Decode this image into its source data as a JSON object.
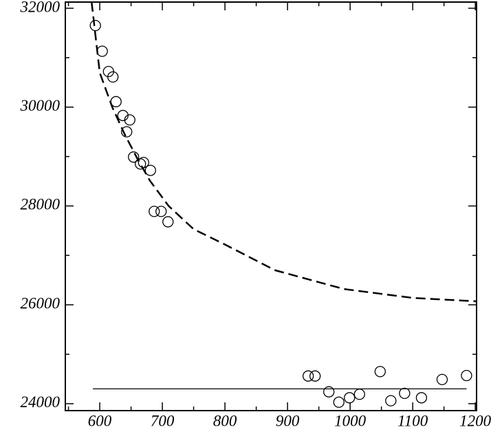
{
  "chart_data": {
    "type": "scatter",
    "xlim": [
      545,
      1202
    ],
    "ylim": [
      23860,
      32125
    ],
    "xticks": [
      600,
      700,
      800,
      900,
      1000,
      1100,
      1200
    ],
    "yticks": [
      24000,
      26000,
      28000,
      30000,
      32000
    ],
    "xminorticks": [
      550,
      650,
      750,
      850,
      950,
      1050,
      1150
    ],
    "yminorticks": [
      25000,
      27000,
      29000,
      31000
    ],
    "series": [
      {
        "type": "scatter",
        "color": "#000000",
        "x": [
          593,
          604,
          614,
          621,
          626,
          637,
          648,
          643,
          654,
          665,
          670,
          681,
          687,
          698,
          709,
          933,
          944,
          966,
          982,
          999,
          1015,
          1048,
          1065,
          1087,
          1114,
          1147,
          1186
        ],
        "values": [
          31650,
          31130,
          30720,
          30610,
          30110,
          29830,
          29740,
          29500,
          28990,
          28850,
          28880,
          28720,
          27890,
          27890,
          27680,
          24560,
          24560,
          24240,
          24030,
          24120,
          24190,
          24650,
          24060,
          24210,
          24120,
          24490,
          24570
        ]
      },
      {
        "type": "line",
        "style": "dashed",
        "color": "#000000",
        "x": [
          587,
          600,
          620,
          640,
          660,
          680,
          710,
          750,
          800,
          880,
          990,
          1100,
          1202
        ],
        "values": [
          32125,
          30695,
          30000,
          29445,
          28960,
          28515,
          28000,
          27530,
          27220,
          26700,
          26320,
          26140,
          26070
        ]
      },
      {
        "type": "line",
        "style": "solid",
        "color": "#000000",
        "x": [
          589,
          1186
        ],
        "values": [
          24300,
          24300
        ]
      }
    ]
  }
}
